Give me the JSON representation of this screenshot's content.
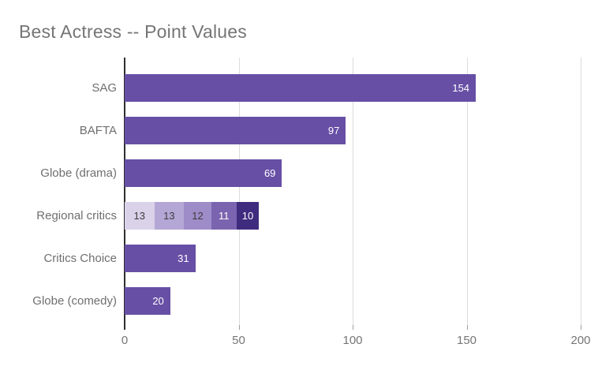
{
  "title": "Best Actress -- Point Values",
  "colors": {
    "background": "#ffffff",
    "bar_primary": "#674fa5",
    "title_text": "#757575",
    "axis_text": "#757575",
    "category_text": "#6f6f6f",
    "gridline": "#dcdcdc",
    "zero_axis_line": "#2e2e2e",
    "value_label_light": "#ffffff",
    "value_label_dark": "#3c3c3c"
  },
  "chart_data": {
    "type": "bar",
    "orientation": "horizontal",
    "title": "Best Actress -- Point Values",
    "xlabel": "",
    "ylabel": "",
    "xlim": [
      0,
      200
    ],
    "xticks": [
      0,
      50,
      100,
      150,
      200
    ],
    "grid": true,
    "legend": "none",
    "categories": [
      "SAG",
      "BAFTA",
      "Globe (drama)",
      "Regional critics",
      "Critics Choice",
      "Globe (comedy)"
    ],
    "rows": [
      {
        "category": "SAG",
        "total": 154,
        "segments": [
          {
            "value": 154,
            "color": "#674fa5",
            "text_color": "#ffffff"
          }
        ]
      },
      {
        "category": "BAFTA",
        "total": 97,
        "segments": [
          {
            "value": 97,
            "color": "#674fa5",
            "text_color": "#ffffff"
          }
        ]
      },
      {
        "category": "Globe (drama)",
        "total": 69,
        "segments": [
          {
            "value": 69,
            "color": "#674fa5",
            "text_color": "#ffffff"
          }
        ]
      },
      {
        "category": "Regional critics",
        "total": 59,
        "segments": [
          {
            "value": 13,
            "color": "#d9d2e9",
            "text_color": "#3c3c3c"
          },
          {
            "value": 13,
            "color": "#b4a7d6",
            "text_color": "#3c3c3c"
          },
          {
            "value": 12,
            "color": "#9e8cc9",
            "text_color": "#3c3c3c"
          },
          {
            "value": 11,
            "color": "#7a64b0",
            "text_color": "#ffffff"
          },
          {
            "value": 10,
            "color": "#3f2c7e",
            "text_color": "#ffffff"
          }
        ]
      },
      {
        "category": "Critics Choice",
        "total": 31,
        "segments": [
          {
            "value": 31,
            "color": "#674fa5",
            "text_color": "#ffffff"
          }
        ]
      },
      {
        "category": "Globe (comedy)",
        "total": 20,
        "segments": [
          {
            "value": 20,
            "color": "#674fa5",
            "text_color": "#ffffff"
          }
        ]
      }
    ]
  }
}
